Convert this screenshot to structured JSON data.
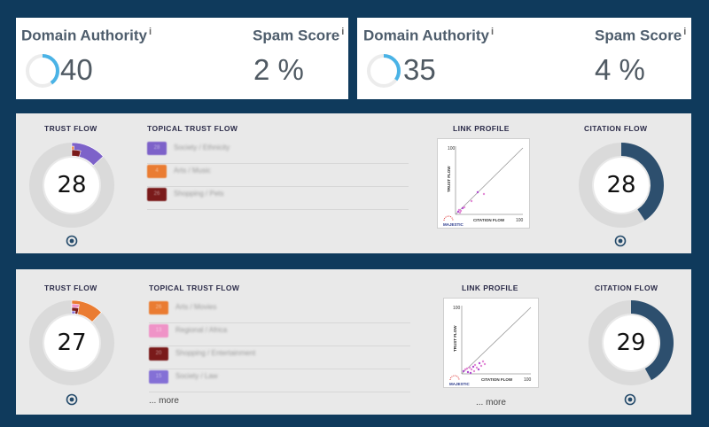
{
  "cards": [
    {
      "da_label": "Domain Authority",
      "da_value": "40",
      "ss_label": "Spam Score",
      "ss_value": "2 %",
      "info": "i",
      "da_fraction": 0.4
    },
    {
      "da_label": "Domain Authority",
      "da_value": "35",
      "ss_label": "Spam Score",
      "ss_value": "4 %",
      "info": "i",
      "da_fraction": 0.35
    }
  ],
  "panels": [
    {
      "trust_flow_label": "TRUST FLOW",
      "trust_flow": 28,
      "topical_label": "TOPICAL TRUST FLOW",
      "topics": [
        {
          "value": "28",
          "name": "Society / Ethnicity",
          "color": "#7d62c9"
        },
        {
          "value": "4",
          "name": "Arts / Music",
          "color": "#ea7c32"
        },
        {
          "value": "26",
          "name": "Shopping / Pets",
          "color": "#7a1a1a"
        }
      ],
      "link_profile_label": "LINK PROFILE",
      "lp_y_axis": "TRUST FLOW",
      "lp_x_axis": "CITATION FLOW",
      "lp_tick": "100",
      "lp_brand": "MAJESTIC",
      "citation_flow_label": "CITATION FLOW",
      "citation_flow": 28,
      "more": ""
    },
    {
      "trust_flow_label": "TRUST FLOW",
      "trust_flow": 27,
      "topical_label": "TOPICAL TRUST FLOW",
      "topics": [
        {
          "value": "26",
          "name": "Arts / Movies",
          "color": "#ea7c32"
        },
        {
          "value": "13",
          "name": "Regional / Africa",
          "color": "#ef93c7"
        },
        {
          "value": "20",
          "name": "Shopping / Entertainment",
          "color": "#7a1a1a"
        },
        {
          "value": "15",
          "name": "Society / Law",
          "color": "#8470d6"
        }
      ],
      "link_profile_label": "LINK PROFILE",
      "lp_y_axis": "TRUST FLOW",
      "lp_x_axis": "CITATION FLOW",
      "lp_tick": "100",
      "lp_brand": "MAJESTIC",
      "citation_flow_label": "CITATION FLOW",
      "citation_flow": 29,
      "more": "... more",
      "lp_more": "... more"
    }
  ],
  "colors": {
    "da_ring": "#4ab3e6",
    "cf_dark": "#2d4f6e",
    "track": "#dadada"
  }
}
